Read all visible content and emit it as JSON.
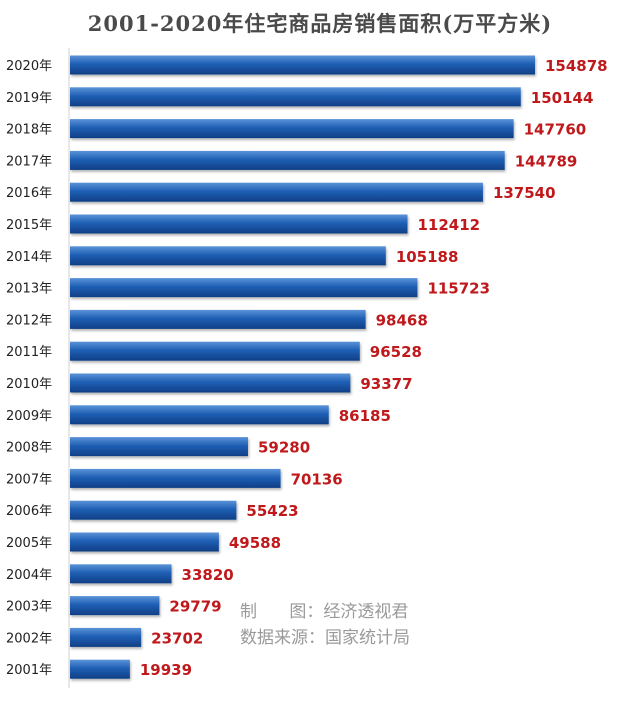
{
  "chart_data": {
    "type": "bar",
    "orientation": "horizontal",
    "title": "2001-2020年住宅商品房销售面积(万平方米)",
    "categories": [
      "2020年",
      "2019年",
      "2018年",
      "2017年",
      "2016年",
      "2015年",
      "2014年",
      "2013年",
      "2012年",
      "2011年",
      "2010年",
      "2009年",
      "2008年",
      "2007年",
      "2006年",
      "2005年",
      "2004年",
      "2003年",
      "2002年",
      "2001年"
    ],
    "values": [
      154878,
      150144,
      147760,
      144789,
      137540,
      112412,
      105188,
      115723,
      98468,
      96528,
      93377,
      86185,
      59280,
      70136,
      55423,
      49588,
      33820,
      29779,
      23702,
      19939
    ],
    "xlim": [
      0,
      160000
    ],
    "grid": false,
    "bar_color": "#1f5fb4",
    "value_label_color": "#c0191c"
  },
  "notes": {
    "maker": "制      图：经济透视君",
    "source": "数据来源：国家统计局"
  }
}
